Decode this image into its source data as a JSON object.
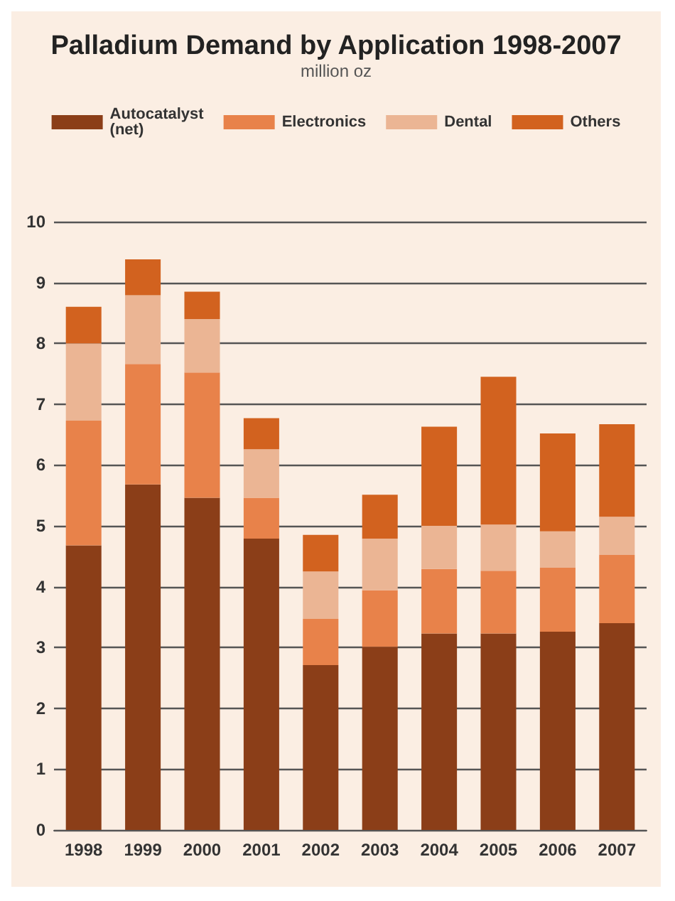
{
  "chart_data": {
    "type": "bar",
    "title": "Palladium Demand by Application 1998-2007",
    "subtitle": "million oz",
    "categories": [
      "1998",
      "1999",
      "2000",
      "2001",
      "2002",
      "2003",
      "2004",
      "2005",
      "2006",
      "2007"
    ],
    "stacked": true,
    "series": [
      {
        "name": "Autocatalyst (net)",
        "color": "#8b3e18",
        "values": [
          4.68,
          5.68,
          5.46,
          4.79,
          2.71,
          3.01,
          3.23,
          3.23,
          3.26,
          3.4
        ]
      },
      {
        "name": "Electronics",
        "color": "#e8824a",
        "values": [
          2.05,
          1.98,
          2.06,
          0.67,
          0.76,
          0.93,
          1.06,
          1.03,
          1.05,
          1.12
        ]
      },
      {
        "name": "Dental",
        "color": "#ebb594",
        "values": [
          1.27,
          1.13,
          0.88,
          0.8,
          0.78,
          0.85,
          0.71,
          0.76,
          0.6,
          0.63
        ]
      },
      {
        "name": "Others",
        "color": "#d2621f",
        "values": [
          0.6,
          0.59,
          0.45,
          0.51,
          0.6,
          0.72,
          1.63,
          2.43,
          1.61,
          1.52
        ]
      }
    ],
    "ylim": [
      0,
      10
    ],
    "yticks": [
      0,
      1,
      2,
      3,
      4,
      5,
      6,
      7,
      8,
      9,
      10
    ],
    "grid": "y",
    "legend": "top"
  }
}
